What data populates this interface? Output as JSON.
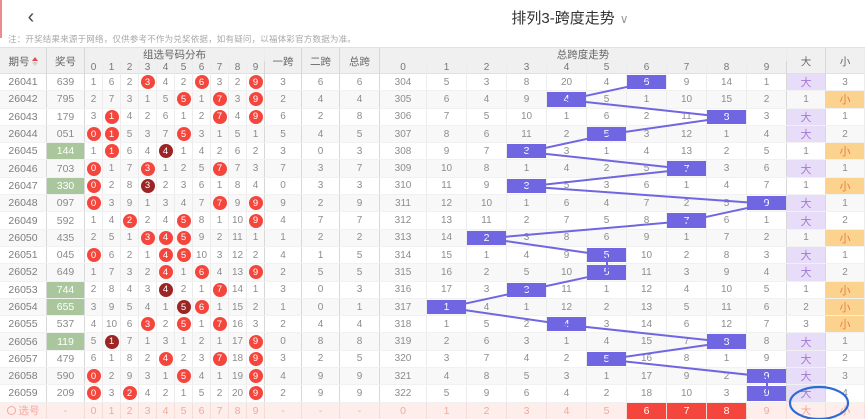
{
  "topbar": {
    "back_icon": "‹",
    "title": "排列3-跨度走势",
    "title_chevron": "∨"
  },
  "notice": "注：开奖结果来源于网络，仅供参考不作为兑奖依据，如有疑问，以福体彩官方数据为准。",
  "colors": {
    "accent_red": "#f4463d",
    "dark_red": "#9b2424",
    "green": "#a9c69c",
    "purple": "#7166e1",
    "big_bg": "#e8ddf8",
    "big_text": "#a678d2",
    "small_bg": "#fbd28e",
    "small_text": "#e8813c",
    "select_bg": "#fdeeeb",
    "select_text": "#f5a79d",
    "annotation_blue": "#2e6bd6"
  },
  "table": {
    "headers": {
      "issue": "期号",
      "prize": "奖号",
      "dist_group": "组选号码分布",
      "span1": "一跨",
      "span2": "二跨",
      "span_total": "总跨",
      "trend_group": "总跨度走势",
      "big": "大",
      "small": "小",
      "digits": [
        "0",
        "1",
        "2",
        "3",
        "4",
        "5",
        "6",
        "7",
        "8",
        "9"
      ]
    },
    "rows": [
      {
        "issue": "26041",
        "prize": "639",
        "green": false,
        "dist": [
          "1",
          "6",
          "2",
          "3",
          "4",
          "2",
          "6",
          "3",
          "2",
          "9"
        ],
        "marks": [
          "",
          "",
          "",
          "r",
          "",
          "",
          "r",
          "",
          "",
          "r"
        ],
        "s1": "3",
        "s2": "6",
        "st": "6",
        "trend": [
          "304",
          "5",
          "3",
          "8",
          "20",
          "4",
          "6",
          "9",
          "14",
          "1"
        ],
        "hit": 6,
        "big": "大",
        "bigHl": true,
        "small": "3",
        "smallHl": false
      },
      {
        "issue": "26042",
        "prize": "795",
        "green": false,
        "dist": [
          "2",
          "7",
          "3",
          "1",
          "5",
          "5",
          "1",
          "7",
          "3",
          "9"
        ],
        "marks": [
          "",
          "",
          "",
          "",
          "",
          "r",
          "",
          "r",
          "",
          "r"
        ],
        "s1": "2",
        "s2": "4",
        "st": "4",
        "trend": [
          "305",
          "6",
          "4",
          "9",
          "4",
          "5",
          "1",
          "10",
          "15",
          "2"
        ],
        "hit": 4,
        "big": "1",
        "bigHl": false,
        "small": "小",
        "smallHl": true
      },
      {
        "issue": "26043",
        "prize": "179",
        "green": false,
        "dist": [
          "3",
          "1",
          "4",
          "2",
          "6",
          "1",
          "2",
          "7",
          "4",
          "9"
        ],
        "marks": [
          "",
          "r",
          "",
          "",
          "",
          "",
          "",
          "r",
          "",
          "r"
        ],
        "s1": "6",
        "s2": "2",
        "st": "8",
        "trend": [
          "306",
          "7",
          "5",
          "10",
          "1",
          "6",
          "2",
          "11",
          "8",
          "3"
        ],
        "hit": 8,
        "big": "大",
        "bigHl": true,
        "small": "1",
        "smallHl": false
      },
      {
        "issue": "26044",
        "prize": "051",
        "green": false,
        "dist": [
          "0",
          "1",
          "5",
          "3",
          "7",
          "5",
          "3",
          "1",
          "5",
          "1"
        ],
        "marks": [
          "r",
          "r",
          "",
          "",
          "",
          "r",
          "",
          "",
          "",
          ""
        ],
        "s1": "5",
        "s2": "4",
        "st": "5",
        "trend": [
          "307",
          "8",
          "6",
          "11",
          "2",
          "5",
          "3",
          "12",
          "1",
          "4"
        ],
        "hit": 5,
        "big": "大",
        "bigHl": true,
        "small": "2",
        "smallHl": false
      },
      {
        "issue": "26045",
        "prize": "144",
        "green": true,
        "dist": [
          "1",
          "1",
          "6",
          "4",
          "4",
          "1",
          "4",
          "2",
          "6",
          "2"
        ],
        "marks": [
          "",
          "r",
          "",
          "",
          "d",
          "",
          "",
          "",
          "",
          ""
        ],
        "s1": "3",
        "s2": "0",
        "st": "3",
        "trend": [
          "308",
          "9",
          "7",
          "3",
          "3",
          "1",
          "4",
          "13",
          "2",
          "5"
        ],
        "hit": 3,
        "big": "1",
        "bigHl": false,
        "small": "小",
        "smallHl": true
      },
      {
        "issue": "26046",
        "prize": "703",
        "green": false,
        "dist": [
          "0",
          "1",
          "7",
          "3",
          "1",
          "2",
          "5",
          "7",
          "7",
          "3"
        ],
        "marks": [
          "r",
          "",
          "",
          "r",
          "",
          "",
          "",
          "r",
          "",
          ""
        ],
        "s1": "7",
        "s2": "3",
        "st": "7",
        "trend": [
          "309",
          "10",
          "8",
          "1",
          "4",
          "2",
          "5",
          "7",
          "3",
          "6"
        ],
        "hit": 7,
        "big": "大",
        "bigHl": true,
        "small": "1",
        "smallHl": false
      },
      {
        "issue": "26047",
        "prize": "330",
        "green": true,
        "dist": [
          "0",
          "2",
          "8",
          "3",
          "2",
          "3",
          "6",
          "1",
          "8",
          "4"
        ],
        "marks": [
          "r",
          "",
          "",
          "d",
          "",
          "",
          "",
          "",
          "",
          ""
        ],
        "s1": "0",
        "s2": "3",
        "st": "3",
        "trend": [
          "310",
          "11",
          "9",
          "3",
          "5",
          "3",
          "6",
          "1",
          "4",
          "7"
        ],
        "hit": 3,
        "big": "1",
        "bigHl": false,
        "small": "小",
        "smallHl": true
      },
      {
        "issue": "26048",
        "prize": "097",
        "green": false,
        "dist": [
          "0",
          "3",
          "9",
          "1",
          "3",
          "4",
          "7",
          "7",
          "9",
          "9"
        ],
        "marks": [
          "r",
          "",
          "",
          "",
          "",
          "",
          "",
          "r",
          "",
          "r"
        ],
        "s1": "9",
        "s2": "2",
        "st": "9",
        "trend": [
          "311",
          "12",
          "10",
          "1",
          "6",
          "4",
          "7",
          "2",
          "5",
          "9"
        ],
        "hit": 9,
        "big": "大",
        "bigHl": true,
        "small": "1",
        "smallHl": false
      },
      {
        "issue": "26049",
        "prize": "592",
        "green": false,
        "dist": [
          "1",
          "4",
          "2",
          "2",
          "4",
          "5",
          "8",
          "1",
          "10",
          "9"
        ],
        "marks": [
          "",
          "",
          "r",
          "",
          "",
          "r",
          "",
          "",
          "",
          "r"
        ],
        "s1": "4",
        "s2": "7",
        "st": "7",
        "trend": [
          "312",
          "13",
          "11",
          "2",
          "7",
          "5",
          "8",
          "7",
          "6",
          "1"
        ],
        "hit": 7,
        "big": "大",
        "bigHl": true,
        "small": "2",
        "smallHl": false
      },
      {
        "issue": "26050",
        "prize": "435",
        "green": false,
        "dist": [
          "2",
          "5",
          "1",
          "3",
          "4",
          "5",
          "9",
          "2",
          "11",
          "1"
        ],
        "marks": [
          "",
          "",
          "",
          "r",
          "r",
          "r",
          "",
          "",
          "",
          ""
        ],
        "s1": "1",
        "s2": "2",
        "st": "2",
        "trend": [
          "313",
          "14",
          "2",
          "3",
          "8",
          "6",
          "9",
          "1",
          "7",
          "2"
        ],
        "hit": 2,
        "big": "1",
        "bigHl": false,
        "small": "小",
        "smallHl": true
      },
      {
        "issue": "26051",
        "prize": "045",
        "green": false,
        "dist": [
          "0",
          "6",
          "2",
          "1",
          "4",
          "5",
          "10",
          "3",
          "12",
          "2"
        ],
        "marks": [
          "r",
          "",
          "",
          "",
          "r",
          "r",
          "",
          "",
          "",
          ""
        ],
        "s1": "4",
        "s2": "1",
        "st": "5",
        "trend": [
          "314",
          "15",
          "1",
          "4",
          "9",
          "5",
          "10",
          "2",
          "8",
          "3"
        ],
        "hit": 5,
        "big": "大",
        "bigHl": true,
        "small": "1",
        "smallHl": false
      },
      {
        "issue": "26052",
        "prize": "649",
        "green": false,
        "dist": [
          "1",
          "7",
          "3",
          "2",
          "4",
          "1",
          "6",
          "4",
          "13",
          "9"
        ],
        "marks": [
          "",
          "",
          "",
          "",
          "r",
          "",
          "r",
          "",
          "",
          "r"
        ],
        "s1": "2",
        "s2": "5",
        "st": "5",
        "trend": [
          "315",
          "16",
          "2",
          "5",
          "10",
          "5",
          "11",
          "3",
          "9",
          "4"
        ],
        "hit": 5,
        "big": "大",
        "bigHl": true,
        "small": "2",
        "smallHl": false
      },
      {
        "issue": "26053",
        "prize": "744",
        "green": true,
        "dist": [
          "2",
          "8",
          "4",
          "3",
          "4",
          "2",
          "1",
          "7",
          "14",
          "1"
        ],
        "marks": [
          "",
          "",
          "",
          "",
          "d",
          "",
          "",
          "r",
          "",
          ""
        ],
        "s1": "3",
        "s2": "0",
        "st": "3",
        "trend": [
          "316",
          "17",
          "3",
          "3",
          "11",
          "1",
          "12",
          "4",
          "10",
          "5"
        ],
        "hit": 3,
        "big": "1",
        "bigHl": false,
        "small": "小",
        "smallHl": true
      },
      {
        "issue": "26054",
        "prize": "655",
        "green": true,
        "dist": [
          "3",
          "9",
          "5",
          "4",
          "1",
          "5",
          "6",
          "1",
          "15",
          "2"
        ],
        "marks": [
          "",
          "",
          "",
          "",
          "",
          "d",
          "r",
          "",
          "",
          ""
        ],
        "s1": "1",
        "s2": "0",
        "st": "1",
        "trend": [
          "317",
          "1",
          "4",
          "1",
          "12",
          "2",
          "13",
          "5",
          "11",
          "6"
        ],
        "hit": 1,
        "big": "2",
        "bigHl": false,
        "small": "小",
        "smallHl": true
      },
      {
        "issue": "26055",
        "prize": "537",
        "green": false,
        "dist": [
          "4",
          "10",
          "6",
          "3",
          "2",
          "5",
          "1",
          "7",
          "16",
          "3"
        ],
        "marks": [
          "",
          "",
          "",
          "r",
          "",
          "r",
          "",
          "r",
          "",
          ""
        ],
        "s1": "2",
        "s2": "4",
        "st": "4",
        "trend": [
          "318",
          "1",
          "5",
          "2",
          "4",
          "3",
          "14",
          "6",
          "12",
          "7"
        ],
        "hit": 4,
        "big": "3",
        "bigHl": false,
        "small": "小",
        "smallHl": true
      },
      {
        "issue": "26056",
        "prize": "119",
        "green": true,
        "dist": [
          "5",
          "1",
          "7",
          "1",
          "3",
          "1",
          "2",
          "1",
          "17",
          "9"
        ],
        "marks": [
          "",
          "d",
          "",
          "",
          "",
          "",
          "",
          "",
          "",
          "r"
        ],
        "s1": "0",
        "s2": "8",
        "st": "8",
        "trend": [
          "319",
          "2",
          "6",
          "3",
          "1",
          "4",
          "15",
          "7",
          "8",
          "8"
        ],
        "hit": 8,
        "big": "大",
        "bigHl": true,
        "small": "1",
        "smallHl": false
      },
      {
        "issue": "26057",
        "prize": "479",
        "green": false,
        "dist": [
          "6",
          "1",
          "8",
          "2",
          "4",
          "2",
          "3",
          "7",
          "18",
          "9"
        ],
        "marks": [
          "",
          "",
          "",
          "",
          "r",
          "",
          "",
          "r",
          "",
          "r"
        ],
        "s1": "3",
        "s2": "2",
        "st": "5",
        "trend": [
          "320",
          "3",
          "7",
          "4",
          "2",
          "5",
          "16",
          "8",
          "1",
          "9"
        ],
        "hit": 5,
        "big": "大",
        "bigHl": true,
        "small": "2",
        "smallHl": false
      },
      {
        "issue": "26058",
        "prize": "590",
        "green": false,
        "dist": [
          "0",
          "2",
          "9",
          "3",
          "1",
          "5",
          "4",
          "1",
          "19",
          "9"
        ],
        "marks": [
          "r",
          "",
          "",
          "",
          "",
          "r",
          "",
          "",
          "",
          "r"
        ],
        "s1": "4",
        "s2": "9",
        "st": "9",
        "trend": [
          "321",
          "4",
          "8",
          "5",
          "3",
          "1",
          "17",
          "9",
          "2",
          "9"
        ],
        "hit": 9,
        "big": "大",
        "bigHl": true,
        "small": "3",
        "smallHl": false
      },
      {
        "issue": "26059",
        "prize": "209",
        "green": false,
        "dist": [
          "0",
          "3",
          "2",
          "4",
          "2",
          "1",
          "5",
          "2",
          "20",
          "9"
        ],
        "marks": [
          "r",
          "",
          "r",
          "",
          "",
          "",
          "",
          "",
          "",
          "r"
        ],
        "s1": "2",
        "s2": "9",
        "st": "9",
        "trend": [
          "322",
          "5",
          "9",
          "6",
          "4",
          "2",
          "18",
          "10",
          "3",
          "9"
        ],
        "hit": 9,
        "big": "大",
        "bigHl": true,
        "small": "4",
        "smallHl": false
      }
    ],
    "select_row": {
      "label": "选号",
      "prize": "-",
      "dist": [
        "0",
        "1",
        "2",
        "3",
        "4",
        "5",
        "6",
        "7",
        "8",
        "9"
      ],
      "s1": "-",
      "s2": "-",
      "st": "-",
      "trend": [
        "0",
        "1",
        "2",
        "3",
        "4",
        "5",
        "6",
        "7",
        "8",
        "9"
      ],
      "trend_selected": [
        6,
        7,
        8
      ],
      "big": "大",
      "small": "小"
    }
  },
  "annotation": {
    "shape": "ellipse",
    "note": "hand-drawn blue circle over big-column of last rows"
  }
}
